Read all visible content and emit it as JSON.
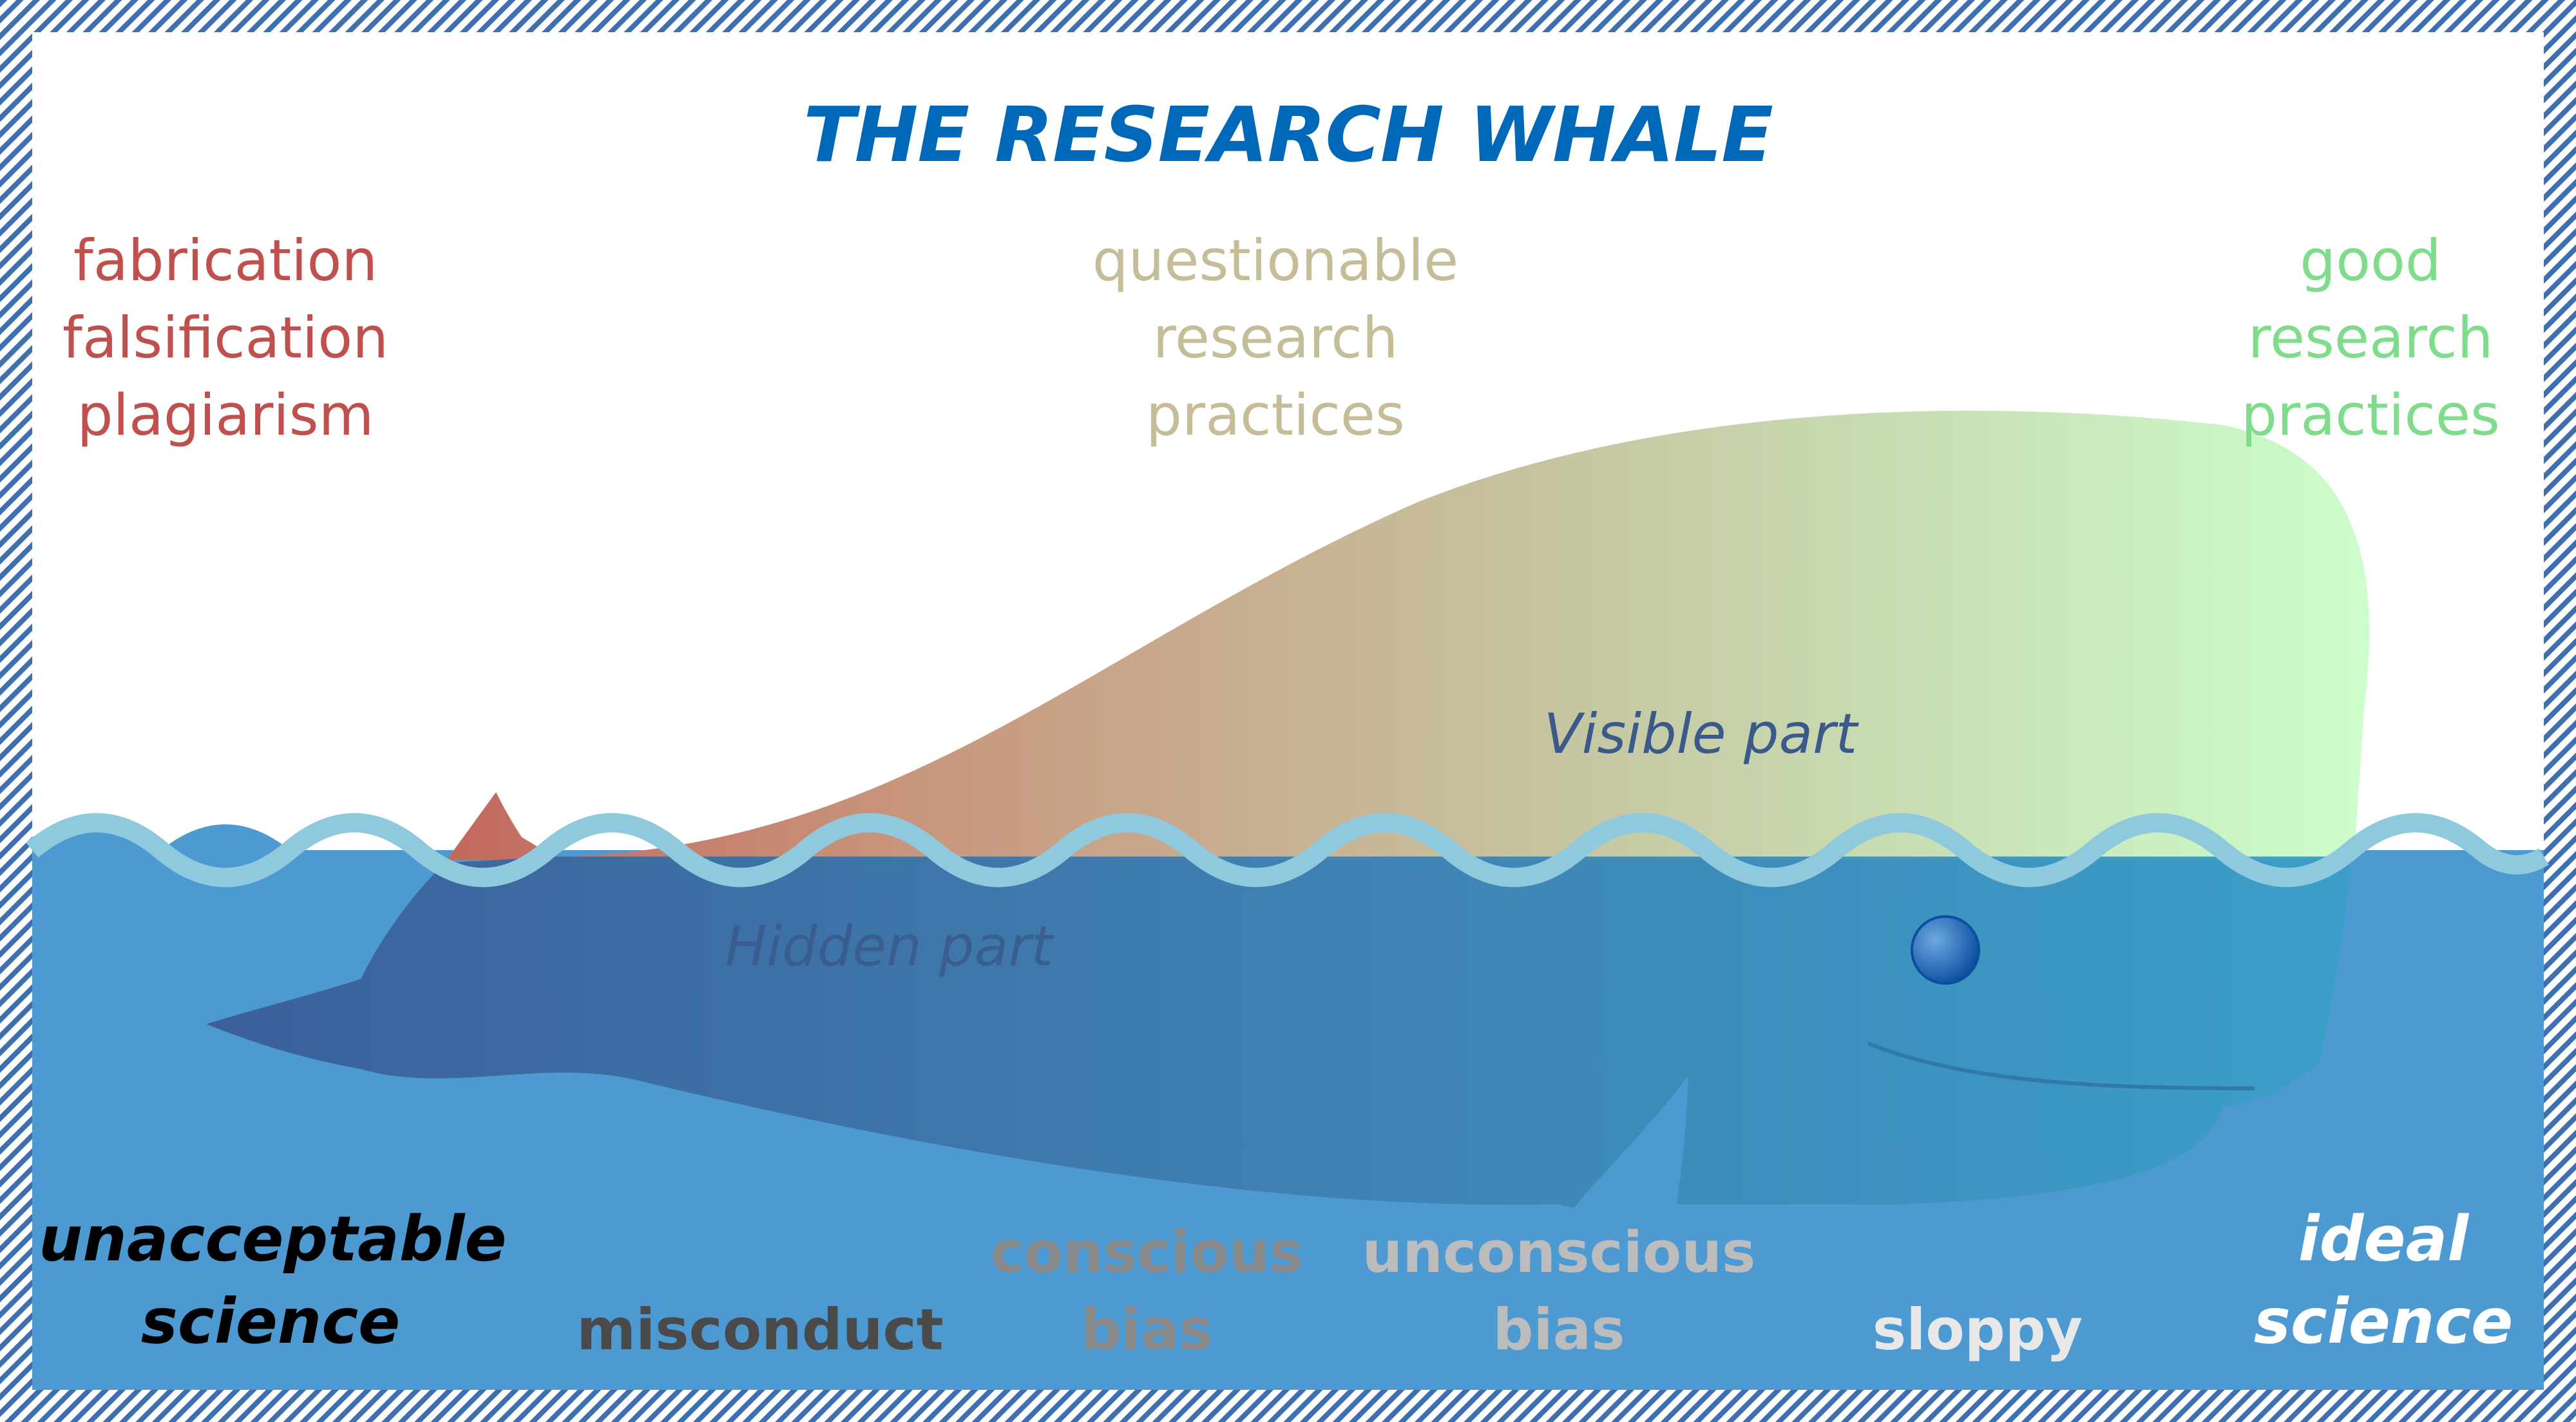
{
  "title": "THE RESEARCH WHALE",
  "categories": {
    "misconduct_types": [
      "fabrication",
      "falsification",
      "plagiarism"
    ],
    "questionable": [
      "questionable",
      "research",
      "practices"
    ],
    "good": [
      "good",
      "research",
      "practices"
    ]
  },
  "parts": {
    "visible": "Visible part",
    "hidden": "Hidden part"
  },
  "scale": {
    "left_end": [
      "unacceptable",
      "science"
    ],
    "misconduct": "misconduct",
    "conscious_bias": [
      "conscious",
      "bias"
    ],
    "unconscious_bias": [
      "unconscious",
      "bias"
    ],
    "sloppy": "sloppy",
    "right_end": [
      "ideal",
      "science"
    ]
  },
  "colors": {
    "title": "#0068b8",
    "misconduct_red": "#c0504d",
    "questionable_tan": "#c5bd98",
    "good_green": "#7fdc8a",
    "water": "#4d9ad2",
    "wave": "#8fc9dd",
    "whale_left": "#c0504d",
    "whale_right": "#ccffcc",
    "border": "#3e6fb0"
  }
}
